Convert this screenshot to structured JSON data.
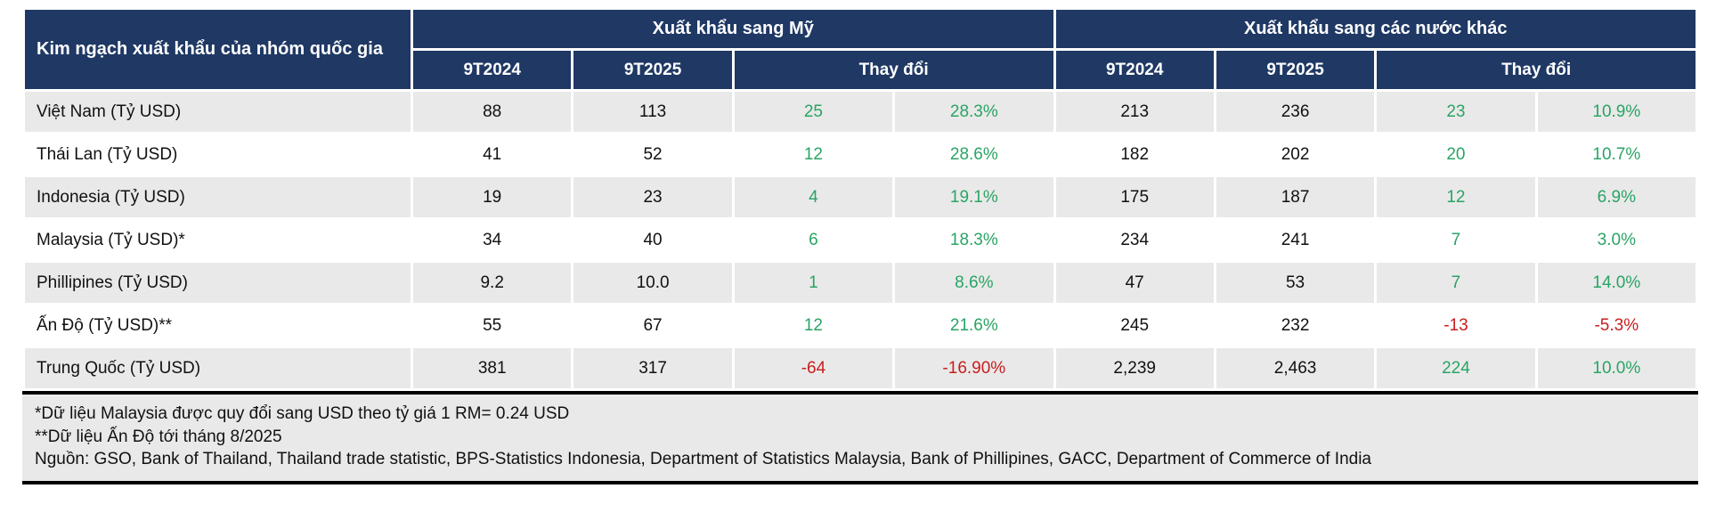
{
  "colors": {
    "header_bg": "#1f3864",
    "header_text": "#ffffff",
    "row_alt_bg": "#e9e9e9",
    "row_bg": "#ffffff",
    "text": "#111111",
    "positive": "#2aa465",
    "negative": "#c81e1e",
    "border": "#000000"
  },
  "table": {
    "group_title": "Kim ngạch xuất khẩu của nhóm quốc gia",
    "sections": [
      {
        "label": "Xuất khẩu sang Mỹ"
      },
      {
        "label": "Xuất khẩu sang các nước khác"
      }
    ],
    "subcolumns": {
      "period1": "9T2024",
      "period2": "9T2025",
      "change": "Thay đổi"
    }
  },
  "rows": [
    {
      "name": "Việt Nam (Tỷ USD)",
      "us": [
        "88",
        "113",
        "25",
        "28.3%"
      ],
      "others": [
        "213",
        "236",
        "23",
        "10.9%"
      ]
    },
    {
      "name": "Thái Lan (Tỷ USD)",
      "us": [
        "41",
        "52",
        "12",
        "28.6%"
      ],
      "others": [
        "182",
        "202",
        "20",
        "10.7%"
      ]
    },
    {
      "name": "Indonesia (Tỷ USD)",
      "us": [
        "19",
        "23",
        "4",
        "19.1%"
      ],
      "others": [
        "175",
        "187",
        "12",
        "6.9%"
      ]
    },
    {
      "name": "Malaysia (Tỷ USD)*",
      "us": [
        "34",
        "40",
        "6",
        "18.3%"
      ],
      "others": [
        "234",
        "241",
        "7",
        "3.0%"
      ]
    },
    {
      "name": "Phillipines (Tỷ USD)",
      "us": [
        "9.2",
        "10.0",
        "1",
        "8.6%"
      ],
      "others": [
        "47",
        "53",
        "7",
        "14.0%"
      ]
    },
    {
      "name": "Ấn Độ (Tỷ USD)**",
      "us": [
        "55",
        "67",
        "12",
        "21.6%"
      ],
      "others": [
        "245",
        "232",
        "-13",
        "-5.3%"
      ]
    },
    {
      "name": "Trung Quốc (Tỷ USD)",
      "us": [
        "381",
        "317",
        "-64",
        "-16.90%"
      ],
      "others": [
        "2,239",
        "2,463",
        "224",
        "10.0%"
      ]
    }
  ],
  "footer": {
    "notes": [
      "*Dữ liệu Malaysia được quy đổi sang USD theo tỷ giá 1 RM= 0.24 USD",
      "**Dữ liệu Ấn Độ tới tháng 8/2025",
      "Nguồn: GSO, Bank of Thailand, Thailand trade statistic, BPS-Statistics Indonesia, Department of Statistics Malaysia, Bank of Phillipines, GACC, Department of Commerce of India"
    ]
  },
  "chart_data": {
    "type": "table",
    "title": "Kim ngạch xuất khẩu của nhóm quốc gia",
    "unit": "Tỷ USD",
    "column_groups": [
      {
        "label": "Xuất khẩu sang Mỹ",
        "columns": [
          "9T2024",
          "9T2025",
          "Thay đổi",
          "Thay đổi %"
        ]
      },
      {
        "label": "Xuất khẩu sang các nước khác",
        "columns": [
          "9T2024",
          "9T2025",
          "Thay đổi",
          "Thay đổi %"
        ]
      }
    ],
    "rows": [
      {
        "country": "Việt Nam",
        "us_9T2024": 88,
        "us_9T2025": 113,
        "us_change": 25,
        "us_change_pct": 28.3,
        "others_9T2024": 213,
        "others_9T2025": 236,
        "others_change": 23,
        "others_change_pct": 10.9
      },
      {
        "country": "Thái Lan",
        "us_9T2024": 41,
        "us_9T2025": 52,
        "us_change": 12,
        "us_change_pct": 28.6,
        "others_9T2024": 182,
        "others_9T2025": 202,
        "others_change": 20,
        "others_change_pct": 10.7
      },
      {
        "country": "Indonesia",
        "us_9T2024": 19,
        "us_9T2025": 23,
        "us_change": 4,
        "us_change_pct": 19.1,
        "others_9T2024": 175,
        "others_9T2025": 187,
        "others_change": 12,
        "others_change_pct": 6.9
      },
      {
        "country": "Malaysia",
        "us_9T2024": 34,
        "us_9T2025": 40,
        "us_change": 6,
        "us_change_pct": 18.3,
        "others_9T2024": 234,
        "others_9T2025": 241,
        "others_change": 7,
        "others_change_pct": 3.0
      },
      {
        "country": "Phillipines",
        "us_9T2024": 9.2,
        "us_9T2025": 10.0,
        "us_change": 1,
        "us_change_pct": 8.6,
        "others_9T2024": 47,
        "others_9T2025": 53,
        "others_change": 7,
        "others_change_pct": 14.0
      },
      {
        "country": "Ấn Độ",
        "us_9T2024": 55,
        "us_9T2025": 67,
        "us_change": 12,
        "us_change_pct": 21.6,
        "others_9T2024": 245,
        "others_9T2025": 232,
        "others_change": -13,
        "others_change_pct": -5.3
      },
      {
        "country": "Trung Quốc",
        "us_9T2024": 381,
        "us_9T2025": 317,
        "us_change": -64,
        "us_change_pct": -16.9,
        "others_9T2024": 2239,
        "others_9T2025": 2463,
        "others_change": 224,
        "others_change_pct": 10.0
      }
    ]
  }
}
